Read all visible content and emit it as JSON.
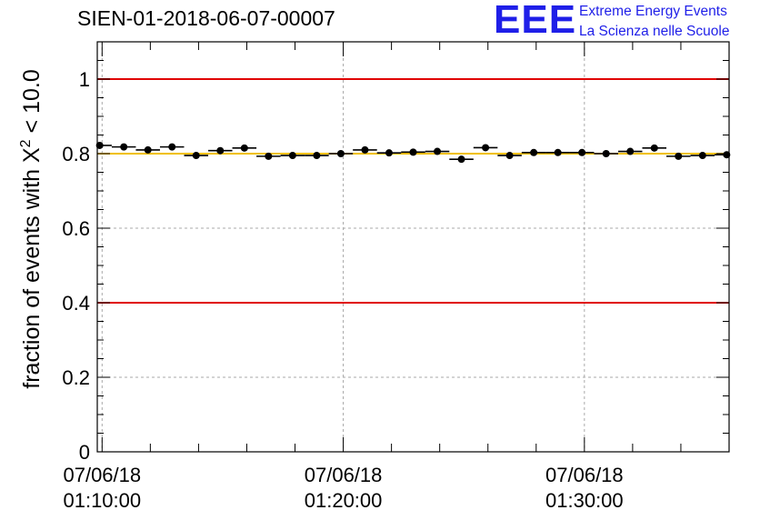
{
  "title": "SIEN-01-2018-06-07-00007",
  "logo": {
    "mark": "EEE",
    "line1": "Extreme Energy Events",
    "line2": "La Scienza nelle Scuole",
    "color": "#1f1fe8"
  },
  "chart_data": {
    "type": "scatter",
    "ylabel_prefix": "fraction of events with ",
    "ylabel_symbol": "X",
    "ylabel_sup": "2",
    "ylabel_suffix": " < 10.0",
    "ylim": [
      0,
      1.1
    ],
    "yticks": [
      {
        "v": 0,
        "label": "0"
      },
      {
        "v": 0.2,
        "label": "0.2"
      },
      {
        "v": 0.4,
        "label": "0.4"
      },
      {
        "v": 0.6,
        "label": "0.6"
      },
      {
        "v": 0.8,
        "label": "0.8"
      },
      {
        "v": 1,
        "label": "1"
      }
    ],
    "xlim_minutes": [
      69.8,
      96.0
    ],
    "xticks": [
      {
        "v": 70,
        "date": "07/06/18",
        "time": "01:10:00"
      },
      {
        "v": 80,
        "date": "07/06/18",
        "time": "01:20:00"
      },
      {
        "v": 90,
        "date": "07/06/18",
        "time": "01:30:00"
      }
    ],
    "grid": true,
    "reference_lines": [
      {
        "y": 1.0,
        "color": "#e00000"
      },
      {
        "y": 0.4,
        "color": "#e00000"
      },
      {
        "y": 0.8,
        "color": "#f0c000"
      }
    ],
    "points": [
      {
        "x": 69.9,
        "y": 0.822
      },
      {
        "x": 70.9,
        "y": 0.818
      },
      {
        "x": 71.9,
        "y": 0.81
      },
      {
        "x": 72.9,
        "y": 0.818
      },
      {
        "x": 73.9,
        "y": 0.795
      },
      {
        "x": 74.9,
        "y": 0.808
      },
      {
        "x": 75.9,
        "y": 0.815
      },
      {
        "x": 76.9,
        "y": 0.793
      },
      {
        "x": 77.9,
        "y": 0.795
      },
      {
        "x": 78.9,
        "y": 0.795
      },
      {
        "x": 79.9,
        "y": 0.8
      },
      {
        "x": 80.9,
        "y": 0.81
      },
      {
        "x": 81.9,
        "y": 0.802
      },
      {
        "x": 82.9,
        "y": 0.804
      },
      {
        "x": 83.9,
        "y": 0.806
      },
      {
        "x": 84.9,
        "y": 0.785
      },
      {
        "x": 85.9,
        "y": 0.816
      },
      {
        "x": 86.9,
        "y": 0.795
      },
      {
        "x": 87.9,
        "y": 0.803
      },
      {
        "x": 88.9,
        "y": 0.803
      },
      {
        "x": 89.9,
        "y": 0.803
      },
      {
        "x": 90.9,
        "y": 0.8
      },
      {
        "x": 91.9,
        "y": 0.806
      },
      {
        "x": 92.9,
        "y": 0.815
      },
      {
        "x": 93.9,
        "y": 0.793
      },
      {
        "x": 94.9,
        "y": 0.795
      },
      {
        "x": 95.9,
        "y": 0.797
      }
    ],
    "x_half_width_minutes": 0.5
  }
}
